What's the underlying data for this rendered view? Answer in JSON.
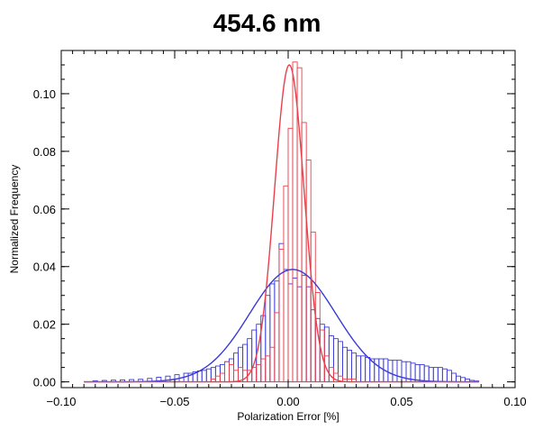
{
  "chart_data": {
    "type": "bar",
    "title": "454.6 nm",
    "xlabel": "Polarization Error [%]",
    "ylabel": "Normalized Frequency",
    "xlim": [
      -0.1,
      0.1
    ],
    "ylim": [
      -0.002,
      0.115
    ],
    "x_ticks": [
      -0.1,
      -0.05,
      0.0,
      0.05,
      0.1
    ],
    "x_tick_labels": [
      "−0.10",
      "−0.05",
      "0.00",
      "0.05",
      "0.10"
    ],
    "y_ticks": [
      0.0,
      0.02,
      0.04,
      0.06,
      0.08,
      0.1
    ],
    "y_tick_labels": [
      "0.00",
      "0.02",
      "0.04",
      "0.06",
      "0.08",
      "0.10"
    ],
    "grid": false,
    "colors": {
      "red": "#e8404a",
      "blue": "#3a3ad8"
    },
    "series": [
      {
        "color": "#e8404a",
        "kind": "histogram",
        "bin_width": 0.002,
        "bins": [
          [
            -0.034,
            0.001
          ],
          [
            -0.032,
            0.002
          ],
          [
            -0.03,
            0.003
          ],
          [
            -0.028,
            0.007
          ],
          [
            -0.026,
            0.006
          ],
          [
            -0.024,
            0.004
          ],
          [
            -0.022,
            0.005
          ],
          [
            -0.02,
            0.004
          ],
          [
            -0.018,
            0.004
          ],
          [
            -0.016,
            0.005
          ],
          [
            -0.014,
            0.006
          ],
          [
            -0.012,
            0.008
          ],
          [
            -0.01,
            0.009
          ],
          [
            -0.008,
            0.012
          ],
          [
            -0.006,
            0.024
          ],
          [
            -0.004,
            0.046
          ],
          [
            -0.002,
            0.068
          ],
          [
            0.0,
            0.088
          ],
          [
            0.002,
            0.111
          ],
          [
            0.004,
            0.109
          ],
          [
            0.006,
            0.09
          ],
          [
            0.008,
            0.077
          ],
          [
            0.01,
            0.052
          ],
          [
            0.012,
            0.031
          ],
          [
            0.014,
            0.018
          ],
          [
            0.016,
            0.009
          ],
          [
            0.018,
            0.005
          ],
          [
            0.02,
            0.003
          ],
          [
            0.022,
            0.002
          ],
          [
            0.024,
            0.001
          ],
          [
            0.026,
            0.001
          ],
          [
            0.028,
            0.001
          ]
        ]
      },
      {
        "color": "#3a3ad8",
        "kind": "histogram",
        "bin_width": 0.002,
        "bins": [
          [
            -0.086,
            0.0004
          ],
          [
            -0.082,
            0.0005
          ],
          [
            -0.078,
            0.0006
          ],
          [
            -0.074,
            0.0007
          ],
          [
            -0.07,
            0.0008
          ],
          [
            -0.066,
            0.0009
          ],
          [
            -0.062,
            0.0012
          ],
          [
            -0.058,
            0.0016
          ],
          [
            -0.054,
            0.002
          ],
          [
            -0.05,
            0.0025
          ],
          [
            -0.046,
            0.003
          ],
          [
            -0.044,
            0.003
          ],
          [
            -0.042,
            0.0035
          ],
          [
            -0.04,
            0.0038
          ],
          [
            -0.038,
            0.004
          ],
          [
            -0.036,
            0.0045
          ],
          [
            -0.034,
            0.005
          ],
          [
            -0.032,
            0.0055
          ],
          [
            -0.03,
            0.006
          ],
          [
            -0.028,
            0.007
          ],
          [
            -0.026,
            0.008
          ],
          [
            -0.024,
            0.01
          ],
          [
            -0.022,
            0.012
          ],
          [
            -0.02,
            0.013
          ],
          [
            -0.018,
            0.015
          ],
          [
            -0.016,
            0.018
          ],
          [
            -0.014,
            0.02
          ],
          [
            -0.012,
            0.023
          ],
          [
            -0.01,
            0.03
          ],
          [
            -0.008,
            0.034
          ],
          [
            -0.006,
            0.035
          ],
          [
            -0.004,
            0.048
          ],
          [
            -0.002,
            0.039
          ],
          [
            0.0,
            0.034
          ],
          [
            0.002,
            0.036
          ],
          [
            0.004,
            0.033
          ],
          [
            0.006,
            0.037
          ],
          [
            0.008,
            0.033
          ],
          [
            0.01,
            0.025
          ],
          [
            0.012,
            0.022
          ],
          [
            0.014,
            0.02
          ],
          [
            0.016,
            0.019
          ],
          [
            0.018,
            0.016
          ],
          [
            0.02,
            0.015
          ],
          [
            0.022,
            0.014
          ],
          [
            0.024,
            0.012
          ],
          [
            0.026,
            0.011
          ],
          [
            0.028,
            0.01
          ],
          [
            0.03,
            0.009
          ],
          [
            0.032,
            0.009
          ],
          [
            0.034,
            0.0085
          ],
          [
            0.036,
            0.008
          ],
          [
            0.038,
            0.008
          ],
          [
            0.04,
            0.008
          ],
          [
            0.042,
            0.008
          ],
          [
            0.044,
            0.0075
          ],
          [
            0.046,
            0.0075
          ],
          [
            0.048,
            0.0075
          ],
          [
            0.05,
            0.007
          ],
          [
            0.052,
            0.007
          ],
          [
            0.054,
            0.0065
          ],
          [
            0.056,
            0.006
          ],
          [
            0.058,
            0.006
          ],
          [
            0.06,
            0.0055
          ],
          [
            0.062,
            0.005
          ],
          [
            0.064,
            0.005
          ],
          [
            0.066,
            0.005
          ],
          [
            0.068,
            0.0045
          ],
          [
            0.07,
            0.004
          ],
          [
            0.072,
            0.003
          ],
          [
            0.074,
            0.002
          ],
          [
            0.076,
            0.0015
          ],
          [
            0.078,
            0.001
          ],
          [
            0.08,
            0.0005
          ],
          [
            0.082,
            0.0003
          ]
        ]
      }
    ],
    "fits": [
      {
        "color": "#e8404a",
        "kind": "gaussian",
        "amplitude": 0.11,
        "mean": 0.0005,
        "sigma": 0.0065
      },
      {
        "color": "#3a3ad8",
        "kind": "gaussian",
        "amplitude": 0.039,
        "mean": 0.002,
        "sigma": 0.019
      }
    ]
  }
}
